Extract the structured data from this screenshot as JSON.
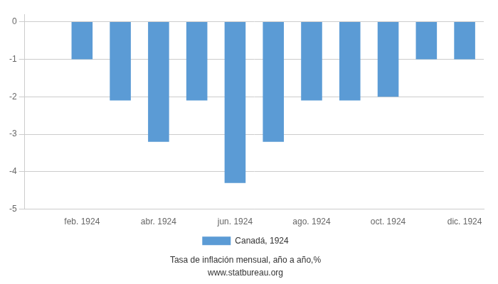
{
  "chart_data": {
    "type": "bar",
    "subtitle": "Tasa de inflación mensual, año a año,%",
    "annotations": [
      "www.statbureau.org"
    ],
    "categories": [
      null,
      "feb. 1924",
      null,
      "abr. 1924",
      null,
      "jun. 1924",
      null,
      "ago. 1924",
      null,
      "oct. 1924",
      null,
      "dic. 1924"
    ],
    "series": [
      {
        "name": "Canadá, 1924",
        "color": "#5b9bd5",
        "values": [
          null,
          -1.0,
          -2.1,
          -3.2,
          -2.1,
          -4.3,
          -3.2,
          -2.1,
          -2.1,
          -2.0,
          -1.0,
          -1.0
        ]
      }
    ],
    "ylim": [
      -5,
      0.2
    ],
    "yticks": [
      0,
      -1,
      -2,
      -3,
      -4,
      -5
    ],
    "grid": true,
    "legend": "bottom"
  }
}
